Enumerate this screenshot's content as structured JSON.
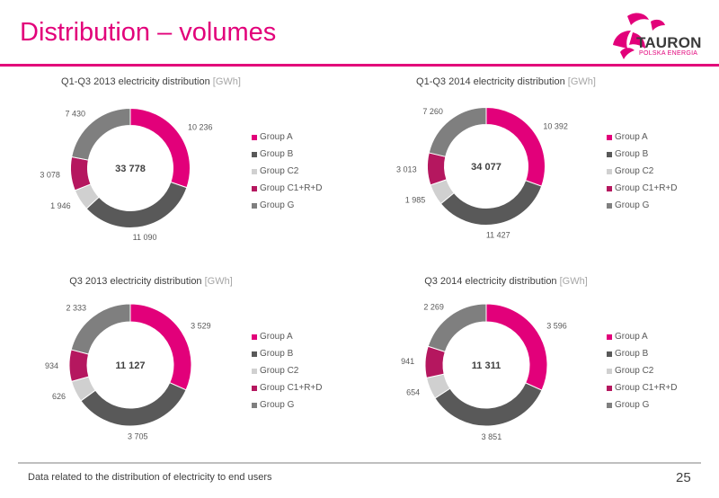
{
  "page": {
    "title": "Distribution – volumes",
    "footnote": "Data related to the distribution of electricity to end users",
    "page_number": "25"
  },
  "logo": {
    "name": "TAURON",
    "subtitle": "POLSKA ENERGIA",
    "colors": {
      "mark": "#e2007a",
      "text": "#3b3b3b"
    }
  },
  "colors": {
    "accent": "#e2007a",
    "Group A": "#e2007a",
    "Group B": "#595959",
    "Group C2": "#d0d0d0",
    "Group C1+R+D": "#b5175f",
    "Group G": "#7f7f7f"
  },
  "chart_data": [
    {
      "type": "pie",
      "variant": "donut",
      "title": "Q1-Q3 2013 electricity distribution",
      "unit": "[GWh]",
      "total_label": "33 778",
      "legend_position": "right",
      "categories": [
        "Group A",
        "Group B",
        "Group C2",
        "Group C1+R+D",
        "Group G"
      ],
      "values": [
        10236,
        11090,
        1946,
        3078,
        7430
      ],
      "value_labels": [
        "10 236",
        "11 090",
        "1 946",
        "3 078",
        "7 430"
      ]
    },
    {
      "type": "pie",
      "variant": "donut",
      "title": "Q1-Q3 2014 electricity distribution",
      "unit": "[GWh]",
      "total_label": "34 077",
      "legend_position": "right",
      "categories": [
        "Group A",
        "Group B",
        "Group C2",
        "Group C1+R+D",
        "Group G"
      ],
      "values": [
        10392,
        11427,
        1985,
        3013,
        7260
      ],
      "value_labels": [
        "10 392",
        "11 427",
        "1 985",
        "3 013",
        "7 260"
      ]
    },
    {
      "type": "pie",
      "variant": "donut",
      "title": "Q3 2013 electricity distribution",
      "unit": "[GWh]",
      "total_label": "11 127",
      "legend_position": "right",
      "categories": [
        "Group A",
        "Group B",
        "Group C2",
        "Group C1+R+D",
        "Group G"
      ],
      "values": [
        3529,
        3705,
        626,
        934,
        2333
      ],
      "value_labels": [
        "3 529",
        "3 705",
        "626",
        "934",
        "2 333"
      ]
    },
    {
      "type": "pie",
      "variant": "donut",
      "title": "Q3 2014 electricity distribution",
      "unit": "[GWh]",
      "total_label": "11 311",
      "legend_position": "right",
      "categories": [
        "Group A",
        "Group B",
        "Group C2",
        "Group C1+R+D",
        "Group G"
      ],
      "values": [
        3596,
        3851,
        654,
        941,
        2269
      ],
      "value_labels": [
        "3 596",
        "3 851",
        "654",
        "941",
        "2 269"
      ]
    }
  ]
}
